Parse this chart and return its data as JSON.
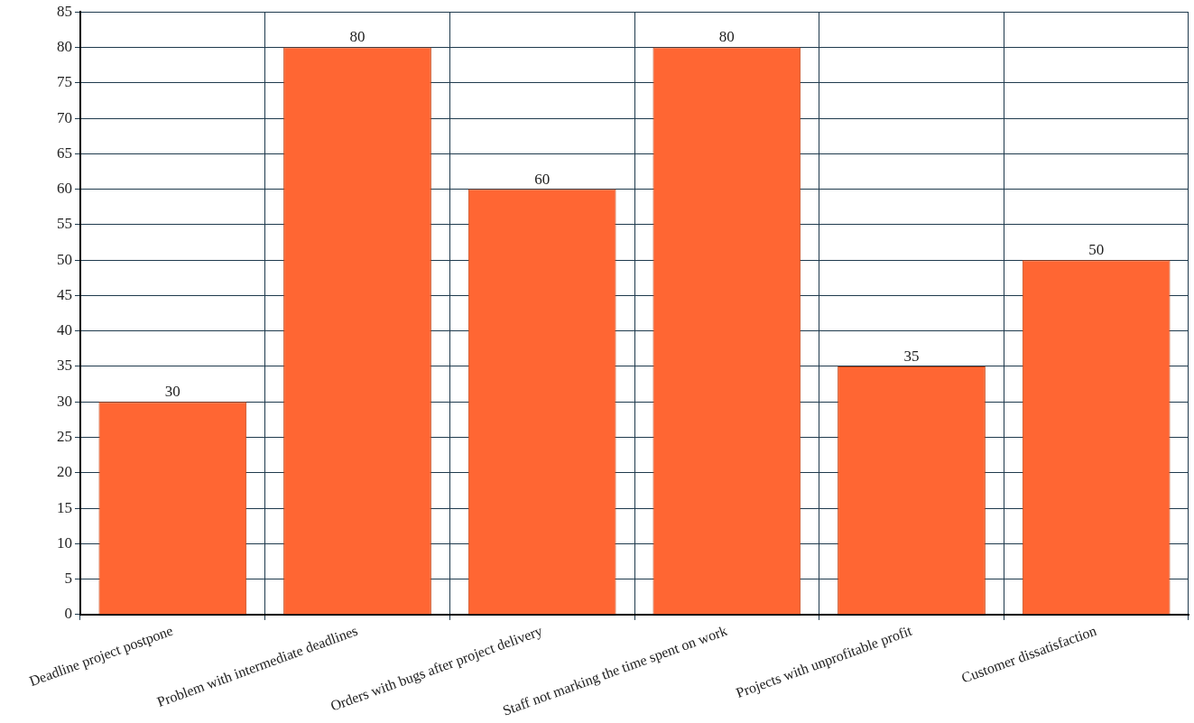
{
  "chart_data": {
    "type": "bar",
    "categories": [
      "Deadline project postpone",
      "Problem with intermediate deadlines",
      "Orders with bugs after project delivery",
      "Staff not marking the time spent on work",
      "Projects with unprofitable profit",
      "Customer dissatisfaction"
    ],
    "values": [
      30,
      80,
      60,
      80,
      35,
      50
    ],
    "color": "#ff6633",
    "ylim": [
      0,
      85
    ],
    "yticks": [
      0,
      5,
      10,
      15,
      20,
      25,
      30,
      35,
      40,
      45,
      50,
      55,
      60,
      65,
      70,
      75,
      80,
      85
    ],
    "grid": true,
    "data_labels": true,
    "legend": false
  }
}
